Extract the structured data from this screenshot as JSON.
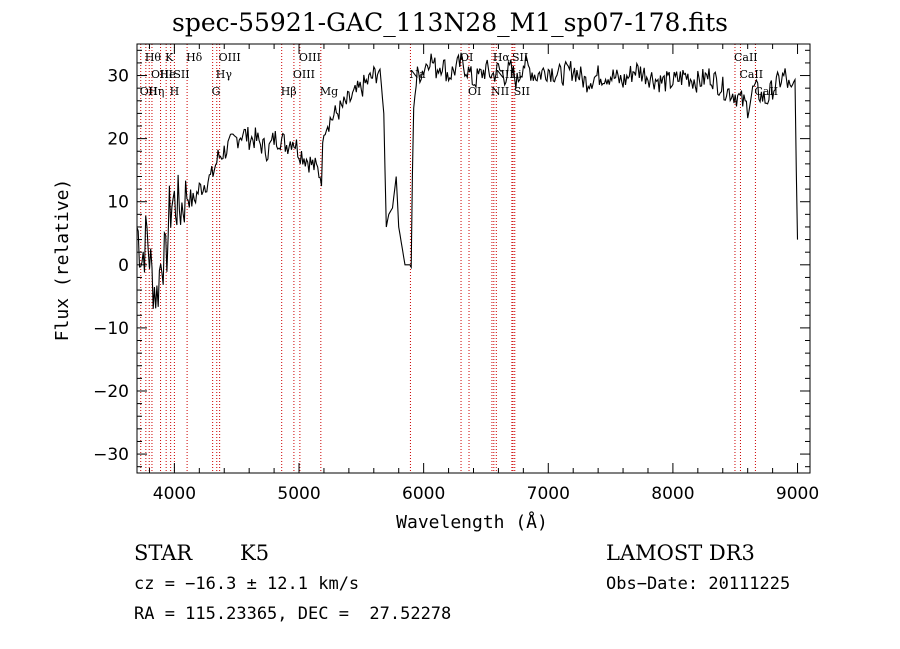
{
  "title": "spec-55921-GAC_113N28_M1_sp07-178.fits",
  "chart_data": {
    "type": "line",
    "title": "spec-55921-GAC_113N28_M1_sp07-178.fits",
    "xlabel": "Wavelength (Å)",
    "ylabel": "Flux (relative)",
    "xlim": [
      3700,
      9100
    ],
    "ylim": [
      -33,
      35
    ],
    "xticks": [
      4000,
      5000,
      6000,
      7000,
      8000,
      9000
    ],
    "yticks": [
      -30,
      -20,
      -10,
      0,
      10,
      20,
      30
    ],
    "series": [
      {
        "name": "flux",
        "x": [
          3700,
          3740,
          3780,
          3820,
          3860,
          3900,
          3930,
          3960,
          3980,
          4000,
          4050,
          4100,
          4150,
          4200,
          4250,
          4300,
          4350,
          4400,
          4450,
          4500,
          4550,
          4600,
          4650,
          4700,
          4750,
          4800,
          4850,
          4900,
          4950,
          5000,
          5050,
          5100,
          5150,
          5180,
          5200,
          5250,
          5300,
          5350,
          5400,
          5450,
          5500,
          5550,
          5600,
          5650,
          5680,
          5700,
          5720,
          5750,
          5780,
          5800,
          5850,
          5880,
          5900,
          5920,
          5950,
          6000,
          6050,
          6100,
          6150,
          6200,
          6250,
          6300,
          6350,
          6400,
          6450,
          6500,
          6550,
          6600,
          6650,
          6700,
          6750,
          6800,
          6900,
          7000,
          7100,
          7200,
          7300,
          7400,
          7500,
          7600,
          7700,
          7800,
          7900,
          8000,
          8100,
          8200,
          8300,
          8400,
          8500,
          8550,
          8600,
          8650,
          8700,
          8750,
          8800,
          8850,
          8900,
          8950,
          8980,
          9000
        ],
        "y": [
          6,
          1,
          5,
          -2,
          -5,
          2,
          0,
          8,
          10,
          10,
          9,
          11,
          10,
          12,
          13,
          14,
          17,
          18,
          19,
          20,
          21,
          20,
          20,
          19,
          18,
          20,
          20,
          19,
          20,
          18,
          17,
          16,
          15,
          14,
          22,
          23,
          24,
          25,
          26,
          27,
          28,
          29,
          30,
          31,
          24,
          6,
          8,
          9,
          14,
          6,
          0,
          0,
          0,
          26,
          30,
          31,
          33,
          31,
          32,
          30,
          31,
          32,
          31,
          29,
          30,
          31,
          30,
          31,
          30,
          31,
          29,
          32,
          30,
          31,
          30,
          31,
          29,
          30,
          30,
          29,
          31,
          30,
          29,
          29,
          30,
          29,
          30,
          28,
          27,
          26,
          25,
          28,
          27,
          26,
          28,
          29,
          30,
          27,
          29,
          4
        ]
      }
    ],
    "lines": [
      {
        "x": 3730,
        "label": "OII",
        "row": 3
      },
      {
        "x": 3771,
        "label": "Hθ",
        "row": 1
      },
      {
        "x": 3798,
        "label": "Hη",
        "row": 3
      },
      {
        "x": 3820,
        "label": "OIII",
        "row": 2
      },
      {
        "x": 3889,
        "label": "He",
        "row": 2
      },
      {
        "x": 3934,
        "label": "K",
        "row": 1
      },
      {
        "x": 3970,
        "label": "H",
        "row": 3
      },
      {
        "x": 4000,
        "label": "SII",
        "row": 2
      },
      {
        "x": 4102,
        "label": "Hδ",
        "row": 1
      },
      {
        "x": 4307,
        "label": "G",
        "row": 3
      },
      {
        "x": 4340,
        "label": "Hγ",
        "row": 2
      },
      {
        "x": 4363,
        "label": "OIII",
        "row": 1
      },
      {
        "x": 4861,
        "label": "Hβ",
        "row": 3
      },
      {
        "x": 4959,
        "label": "OIII",
        "row": 2
      },
      {
        "x": 5007,
        "label": "OIII",
        "row": 1
      },
      {
        "x": 5175,
        "label": "Mg",
        "row": 3
      },
      {
        "x": 5894,
        "label": "Na",
        "row": 2
      },
      {
        "x": 6300,
        "label": "OI",
        "row": 1
      },
      {
        "x": 6364,
        "label": "OI",
        "row": 3
      },
      {
        "x": 6548,
        "label": "NII",
        "row": 3
      },
      {
        "x": 6563,
        "label": "Hα",
        "row": 1
      },
      {
        "x": 6583,
        "label": "NII",
        "row": 2
      },
      {
        "x": 6708,
        "label": "Li",
        "row": 2
      },
      {
        "x": 6717,
        "label": "SII",
        "row": 1
      },
      {
        "x": 6731,
        "label": "SII",
        "row": 3
      },
      {
        "x": 8498,
        "label": "CaII",
        "row": 1
      },
      {
        "x": 8542,
        "label": "CaII",
        "row": 2
      },
      {
        "x": 8662,
        "label": "CaII",
        "row": 3
      }
    ]
  },
  "info": {
    "class": "STAR",
    "subclass": "K5",
    "survey": "LAMOST DR3",
    "cz": "cz = −16.3 ± 12.1 km/s",
    "obs_date": "Obs−Date: 20111225",
    "radec": "RA = 115.23365, DEC =  27.52278"
  }
}
